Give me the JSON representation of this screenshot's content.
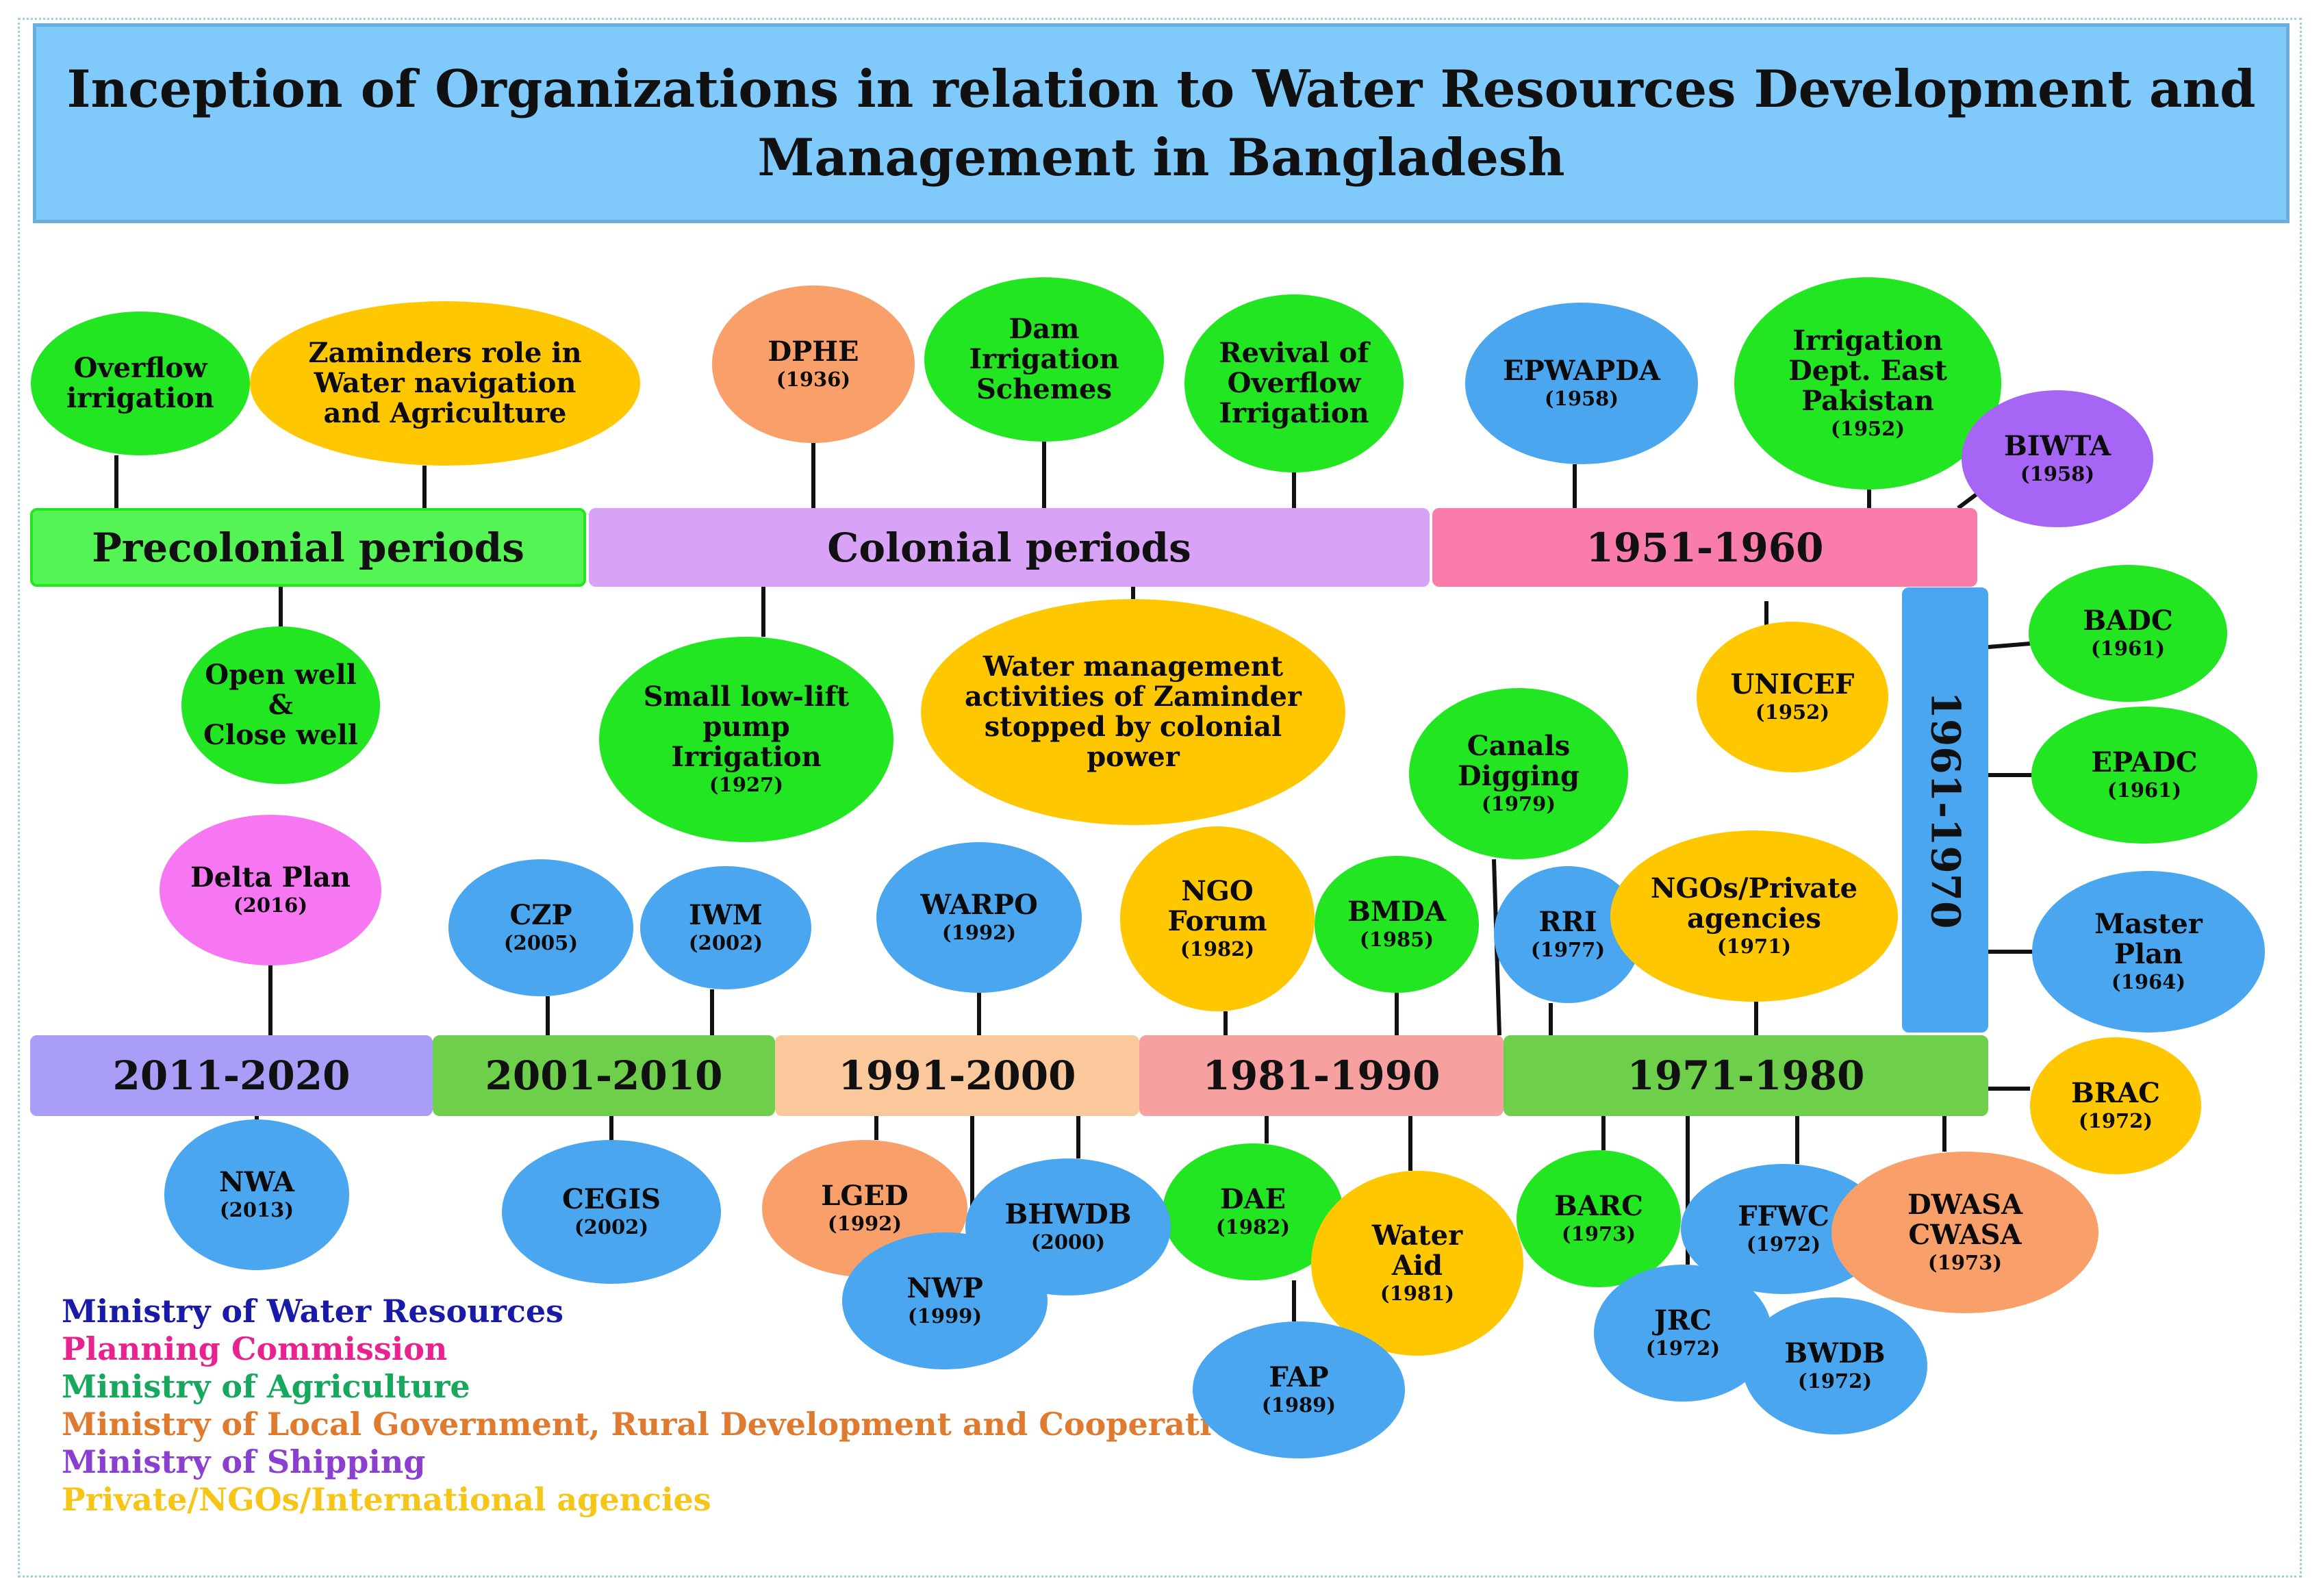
{
  "title": "Inception of Organizations in relation to Water Resources  Development and\nManagement in Bangladesh",
  "colors": {
    "water_resources": "#4aa6ef",
    "planning": "#f777f3",
    "agriculture": "#22e622",
    "local_government": "#f9a06a",
    "shipping": "#a765f5",
    "private": "#ffc700"
  },
  "periods": [
    {
      "id": "precolonial",
      "label": "Precolonial periods"
    },
    {
      "id": "colonial",
      "label": "Colonial periods"
    },
    {
      "id": "p1951",
      "label": "1951-1960"
    },
    {
      "id": "p1961",
      "label": "1961-1970"
    },
    {
      "id": "p1971",
      "label": "1971-1980"
    },
    {
      "id": "p1981",
      "label": "1981-1990"
    },
    {
      "id": "p1991",
      "label": "1991-2000"
    },
    {
      "id": "p2001",
      "label": "2001-2010"
    },
    {
      "id": "p2011",
      "label": "2011-2020"
    }
  ],
  "nodes": [
    {
      "id": "overflow-irrigation",
      "name": "Overflow\nirrigation",
      "year": "",
      "category": "agriculture"
    },
    {
      "id": "zaminders-role",
      "name": "Zaminders role in\nWater navigation\nand Agriculture",
      "year": "",
      "category": "private"
    },
    {
      "id": "open-well",
      "name": "Open well\n&\nClose well",
      "year": "",
      "category": "agriculture"
    },
    {
      "id": "dphe",
      "name": "DPHE",
      "year": "(1936)",
      "category": "local_government"
    },
    {
      "id": "dam-irrigation",
      "name": "Dam\nIrrigation\nSchemes",
      "year": "",
      "category": "agriculture"
    },
    {
      "id": "revival-overflow",
      "name": "Revival of\nOverflow\nIrrigation",
      "year": "",
      "category": "agriculture"
    },
    {
      "id": "small-pump",
      "name": "Small low-lift\npump\nIrrigation",
      "year": "(1927)",
      "category": "agriculture"
    },
    {
      "id": "zaminder-stopped",
      "name": "Water management\nactivities of Zaminder\nstopped by colonial\npower",
      "year": "",
      "category": "private"
    },
    {
      "id": "epwapda",
      "name": "EPWAPDA",
      "year": "(1958)",
      "category": "water_resources"
    },
    {
      "id": "irrigation-dept",
      "name": "Irrigation\nDept. East\nPakistan",
      "year": "(1952)",
      "category": "agriculture"
    },
    {
      "id": "biwta",
      "name": "BIWTA",
      "year": "(1958)",
      "category": "shipping"
    },
    {
      "id": "unicef",
      "name": "UNICEF",
      "year": "(1952)",
      "category": "private"
    },
    {
      "id": "badc",
      "name": "BADC",
      "year": "(1961)",
      "category": "agriculture"
    },
    {
      "id": "epadc",
      "name": "EPADC",
      "year": "(1961)",
      "category": "agriculture"
    },
    {
      "id": "master-plan",
      "name": "Master\nPlan",
      "year": "(1964)",
      "category": "water_resources"
    },
    {
      "id": "brac",
      "name": "BRAC",
      "year": "(1972)",
      "category": "private"
    },
    {
      "id": "canals-digging",
      "name": "Canals\nDigging",
      "year": "(1979)",
      "category": "agriculture"
    },
    {
      "id": "rri",
      "name": "RRI",
      "year": "(1977)",
      "category": "water_resources"
    },
    {
      "id": "ngos-private",
      "name": "NGOs/Private\nagencies",
      "year": "(1971)",
      "category": "private"
    },
    {
      "id": "barc",
      "name": "BARC",
      "year": "(1973)",
      "category": "agriculture"
    },
    {
      "id": "jrc",
      "name": "JRC",
      "year": "(1972)",
      "category": "water_resources"
    },
    {
      "id": "ffwc",
      "name": "FFWC",
      "year": "(1972)",
      "category": "water_resources"
    },
    {
      "id": "bwdb",
      "name": "BWDB",
      "year": "(1972)",
      "category": "water_resources"
    },
    {
      "id": "dwasa",
      "name": "DWASA\nCWASA",
      "year": "(1973)",
      "category": "local_government"
    },
    {
      "id": "ngo-forum",
      "name": "NGO\nForum",
      "year": "(1982)",
      "category": "private"
    },
    {
      "id": "bmda",
      "name": "BMDA",
      "year": "(1985)",
      "category": "agriculture"
    },
    {
      "id": "dae",
      "name": "DAE",
      "year": "(1982)",
      "category": "agriculture"
    },
    {
      "id": "water-aid",
      "name": "Water\nAid",
      "year": "(1981)",
      "category": "private"
    },
    {
      "id": "fap",
      "name": "FAP",
      "year": "(1989)",
      "category": "water_resources"
    },
    {
      "id": "warpo",
      "name": "WARPO",
      "year": "(1992)",
      "category": "water_resources"
    },
    {
      "id": "lged",
      "name": "LGED",
      "year": "(1992)",
      "category": "local_government"
    },
    {
      "id": "bhwdb",
      "name": "BHWDB",
      "year": "(2000)",
      "category": "water_resources"
    },
    {
      "id": "nwp",
      "name": "NWP",
      "year": "(1999)",
      "category": "water_resources"
    },
    {
      "id": "czp",
      "name": "CZP",
      "year": "(2005)",
      "category": "water_resources"
    },
    {
      "id": "iwm",
      "name": "IWM",
      "year": "(2002)",
      "category": "water_resources"
    },
    {
      "id": "cegis",
      "name": "CEGIS",
      "year": "(2002)",
      "category": "water_resources"
    },
    {
      "id": "delta-plan",
      "name": "Delta Plan",
      "year": "(2016)",
      "category": "planning"
    },
    {
      "id": "nwa",
      "name": "NWA",
      "year": "(2013)",
      "category": "water_resources"
    }
  ],
  "legend": [
    {
      "label": "Ministry of Water Resources",
      "color": "#1a1aa8"
    },
    {
      "label": "Planning Commission",
      "color": "#e8238f"
    },
    {
      "label": "Ministry of Agriculture",
      "color": "#17a85e"
    },
    {
      "label": "Ministry of Local Government, Rural Development and Cooperative",
      "color": "#e07a2e"
    },
    {
      "label": "Ministry of Shipping",
      "color": "#8a3fd1"
    },
    {
      "label": "Private/NGOs/International agencies",
      "color": "#f5c518"
    }
  ]
}
